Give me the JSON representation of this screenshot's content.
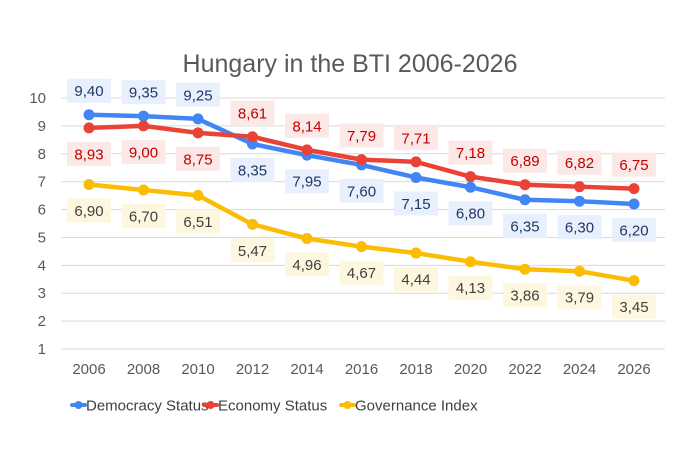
{
  "chart_data": {
    "type": "line",
    "title": "Hungary in the BTI 2006-2026",
    "xlabel": "",
    "ylabel": "",
    "categories": [
      "2006",
      "2008",
      "2010",
      "2012",
      "2014",
      "2016",
      "2018",
      "2020",
      "2022",
      "2024",
      "2026"
    ],
    "ylim": [
      1,
      10
    ],
    "yticks": [
      "1",
      "2",
      "3",
      "4",
      "5",
      "6",
      "7",
      "8",
      "9",
      "10"
    ],
    "grid": true,
    "legend_position": "bottom",
    "decimal_separator": ",",
    "series": [
      {
        "name": "Democracy Status",
        "color": "#4285f4",
        "label_color": "#1f3864",
        "label_bg": "#e8f0fe",
        "label_position": "alternating",
        "values": [
          9.4,
          9.35,
          9.25,
          8.35,
          7.95,
          7.6,
          7.15,
          6.8,
          6.35,
          6.3,
          6.2
        ],
        "labels": [
          "9,40",
          "9,35",
          "9,25",
          "8,35",
          "7,95",
          "7,60",
          "7,15",
          "6,80",
          "6,35",
          "6,30",
          "6,20"
        ],
        "label_above": [
          true,
          true,
          true,
          false,
          false,
          false,
          false,
          false,
          false,
          false,
          false
        ]
      },
      {
        "name": "Economy Status",
        "color": "#ea4335",
        "label_color": "#c00000",
        "label_bg": "#fce8e6",
        "values": [
          8.93,
          9.0,
          8.75,
          8.61,
          8.14,
          7.79,
          7.71,
          7.18,
          6.89,
          6.82,
          6.75
        ],
        "labels": [
          "8,93",
          "9,00",
          "8,75",
          "8,61",
          "8,14",
          "7,79",
          "7,71",
          "7,18",
          "6,89",
          "6,82",
          "6,75"
        ],
        "label_above": [
          false,
          false,
          false,
          true,
          true,
          true,
          true,
          true,
          true,
          true,
          true
        ]
      },
      {
        "name": "Governance Index",
        "color": "#fbbc04",
        "label_color": "#404040",
        "label_bg": "#fef7e0",
        "values": [
          6.9,
          6.7,
          6.51,
          5.47,
          4.96,
          4.67,
          4.44,
          4.13,
          3.86,
          3.79,
          3.45
        ],
        "labels": [
          "6,90",
          "6,70",
          "6,51",
          "5,47",
          "4,96",
          "4,67",
          "4,44",
          "4,13",
          "3,86",
          "3,79",
          "3,45"
        ],
        "label_above": [
          false,
          false,
          false,
          false,
          false,
          false,
          false,
          false,
          false,
          false,
          false
        ]
      }
    ]
  }
}
